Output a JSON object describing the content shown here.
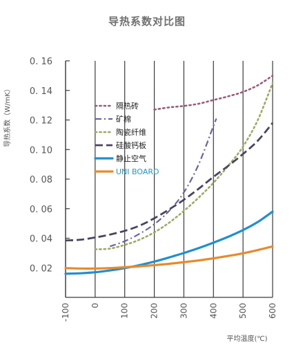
{
  "chart_data": {
    "type": "line",
    "title": "导热系数对比图",
    "xlabel": "平均温度(℃)",
    "ylabel": "导热系数（W/mK）",
    "xlim": [
      -100,
      600
    ],
    "ylim": [
      0,
      0.16
    ],
    "xticks": [
      -100,
      0,
      100,
      200,
      300,
      400,
      500,
      600
    ],
    "yticks": [
      0.02,
      0.04,
      0.06,
      0.08,
      0.1,
      0.12,
      0.14,
      0.16
    ],
    "xtick_labels": [
      "-100",
      "0",
      "100",
      "200",
      "300",
      "400",
      "500",
      "600"
    ],
    "ytick_labels": [
      "0. 02",
      "0. 04",
      "0. 06",
      "0. 08",
      "0. 10",
      "0. 12",
      "0. 14",
      "0. 16"
    ],
    "grid": "vertical",
    "legend_position": "upper-left",
    "series": [
      {
        "name": "隔热砖",
        "color": "#9b5a7b",
        "style": "dotted",
        "x": [
          200,
          250,
          300,
          350,
          400,
          450,
          500,
          550,
          600
        ],
        "y": [
          0.127,
          0.1285,
          0.1295,
          0.131,
          0.1335,
          0.136,
          0.139,
          0.1435,
          0.15
        ]
      },
      {
        "name": "矿棉",
        "color": "#6b63a8",
        "style": "dashdot",
        "x": [
          50,
          100,
          150,
          200,
          250,
          300,
          350,
          400,
          410
        ],
        "y": [
          0.0345,
          0.038,
          0.043,
          0.0495,
          0.0585,
          0.071,
          0.09,
          0.116,
          0.121
        ]
      },
      {
        "name": "陶瓷纤维",
        "color": "#9aaa62",
        "style": "dotted",
        "x": [
          0,
          50,
          100,
          150,
          200,
          250,
          300,
          350,
          400,
          450,
          500,
          550,
          600
        ],
        "y": [
          0.0325,
          0.033,
          0.0355,
          0.039,
          0.044,
          0.0505,
          0.0585,
          0.0675,
          0.0775,
          0.089,
          0.102,
          0.12,
          0.145
        ]
      },
      {
        "name": "硅酸钙板",
        "color": "#4c4360",
        "style": "dashed",
        "x": [
          -100,
          -50,
          0,
          50,
          100,
          150,
          200,
          250,
          300,
          350,
          400,
          450,
          500,
          550,
          600
        ],
        "y": [
          0.0385,
          0.039,
          0.0405,
          0.0425,
          0.045,
          0.0485,
          0.0535,
          0.0595,
          0.066,
          0.0735,
          0.0815,
          0.089,
          0.097,
          0.106,
          0.118
        ]
      },
      {
        "name": "静止空气",
        "color": "#1e8fcf",
        "style": "solid",
        "x": [
          -100,
          -50,
          0,
          50,
          100,
          150,
          200,
          250,
          300,
          350,
          400,
          450,
          500,
          550,
          600
        ],
        "y": [
          0.016,
          0.0163,
          0.017,
          0.0182,
          0.0198,
          0.0218,
          0.0242,
          0.027,
          0.03,
          0.0333,
          0.037,
          0.041,
          0.0455,
          0.051,
          0.058
        ]
      },
      {
        "name": "UNI BOARD",
        "color": "#e8892b",
        "style": "solid",
        "x": [
          -100,
          -50,
          0,
          50,
          100,
          150,
          200,
          250,
          300,
          350,
          400,
          450,
          500,
          550,
          600
        ],
        "y": [
          0.0198,
          0.0195,
          0.0195,
          0.0198,
          0.0204,
          0.021,
          0.0218,
          0.0227,
          0.0238,
          0.025,
          0.0264,
          0.028,
          0.0298,
          0.032,
          0.0345
        ]
      }
    ]
  }
}
